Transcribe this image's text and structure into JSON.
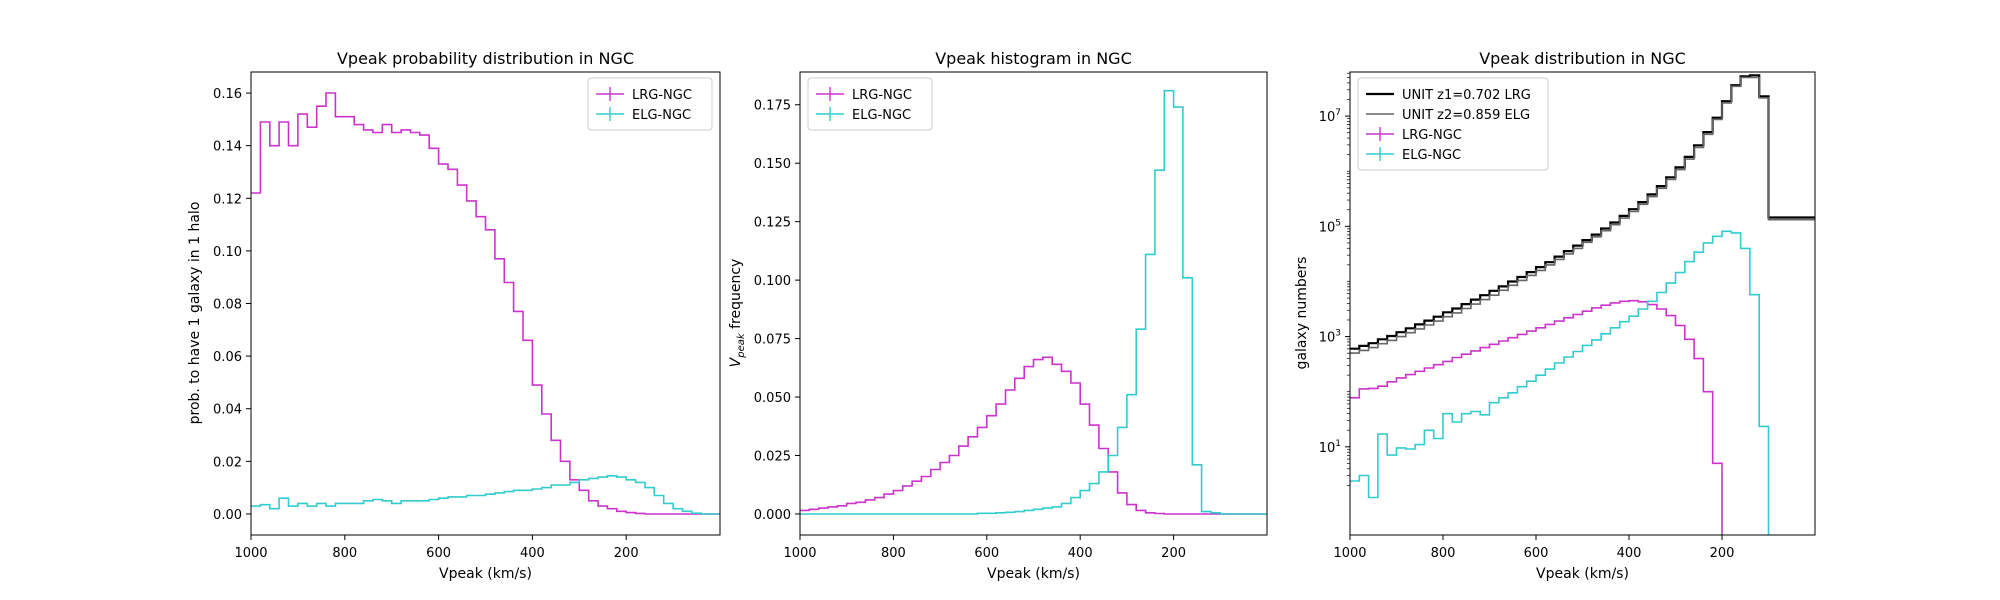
{
  "figure": {
    "background": "#ffffff",
    "colors": {
      "lrg": "#cc33cc",
      "elg": "#33cccc",
      "unit1": "#000000",
      "unit2": "#666666"
    }
  },
  "chart_data": [
    {
      "type": "line",
      "title": "Vpeak probability distribution in NGC",
      "xlabel": "Vpeak (km/s)",
      "ylabel": "prob. to have 1 galaxy in 1 halo",
      "xlim": [
        1000,
        0
      ],
      "ylim": [
        -0.008,
        0.168
      ],
      "yscale": "linear",
      "xticks": [
        1000,
        800,
        600,
        400,
        200
      ],
      "yticks": [
        "0.00",
        "0.02",
        "0.04",
        "0.06",
        "0.08",
        "0.10",
        "0.12",
        "0.14",
        "0.16"
      ],
      "legend_position": "top-right",
      "legend": [
        "LRG-NGC",
        "ELG-NGC"
      ],
      "grid": false,
      "bin_edges_start": 1000,
      "bin_width": 20,
      "series": [
        {
          "name": "LRG-NGC",
          "color": "#cc33cc",
          "marker": "errorbar",
          "values": [
            0.122,
            0.149,
            0.14,
            0.149,
            0.14,
            0.152,
            0.147,
            0.155,
            0.16,
            0.151,
            0.151,
            0.148,
            0.146,
            0.145,
            0.148,
            0.145,
            0.146,
            0.145,
            0.144,
            0.139,
            0.133,
            0.131,
            0.125,
            0.119,
            0.113,
            0.108,
            0.097,
            0.088,
            0.077,
            0.066,
            0.049,
            0.038,
            0.028,
            0.02,
            0.013,
            0.009,
            0.005,
            0.003,
            0.002,
            0.001,
            0.0005,
            0.0002,
            0,
            0,
            0,
            0,
            0,
            0,
            0,
            0
          ]
        },
        {
          "name": "ELG-NGC",
          "color": "#33cccc",
          "marker": "errorbar",
          "values": [
            0.003,
            0.0035,
            0.002,
            0.006,
            0.003,
            0.004,
            0.003,
            0.004,
            0.003,
            0.004,
            0.004,
            0.004,
            0.005,
            0.0055,
            0.005,
            0.004,
            0.005,
            0.005,
            0.005,
            0.0055,
            0.006,
            0.0065,
            0.0065,
            0.007,
            0.007,
            0.0075,
            0.008,
            0.0085,
            0.009,
            0.009,
            0.0095,
            0.01,
            0.011,
            0.011,
            0.012,
            0.013,
            0.0135,
            0.014,
            0.0145,
            0.014,
            0.013,
            0.012,
            0.01,
            0.007,
            0.004,
            0.002,
            0.001,
            0.0003,
            0,
            0
          ]
        }
      ]
    },
    {
      "type": "line",
      "title": "Vpeak histogram in NGC",
      "xlabel": "Vpeak (km/s)",
      "ylabel_base": "V",
      "ylabel_sub": "peak",
      "ylabel_rest": " frequency",
      "xlim": [
        1000,
        0
      ],
      "ylim": [
        -0.009,
        0.189
      ],
      "yscale": "linear",
      "xticks": [
        1000,
        800,
        600,
        400,
        200
      ],
      "yticks": [
        "0.000",
        "0.025",
        "0.050",
        "0.075",
        "0.100",
        "0.125",
        "0.150",
        "0.175"
      ],
      "legend_position": "top-left",
      "legend": [
        "LRG-NGC",
        "ELG-NGC"
      ],
      "grid": false,
      "bin_edges_start": 1000,
      "bin_width": 20,
      "series": [
        {
          "name": "LRG-NGC",
          "color": "#cc33cc",
          "marker": "errorbar",
          "values": [
            0.0015,
            0.002,
            0.0025,
            0.003,
            0.0035,
            0.0045,
            0.005,
            0.006,
            0.007,
            0.0085,
            0.01,
            0.012,
            0.014,
            0.016,
            0.019,
            0.022,
            0.025,
            0.029,
            0.033,
            0.037,
            0.042,
            0.047,
            0.053,
            0.058,
            0.063,
            0.066,
            0.067,
            0.064,
            0.061,
            0.056,
            0.047,
            0.038,
            0.028,
            0.018,
            0.009,
            0.004,
            0.0015,
            0.0005,
            0.0002,
            0,
            0,
            0,
            0,
            0,
            0,
            0,
            0,
            0,
            0,
            0
          ]
        },
        {
          "name": "ELG-NGC",
          "color": "#33cccc",
          "marker": "errorbar",
          "values": [
            0,
            0,
            0,
            0,
            0,
            0,
            0,
            0,
            0,
            0,
            0,
            0,
            0,
            0,
            0,
            0,
            0,
            0,
            0,
            0.0003,
            0.0003,
            0.0005,
            0.0007,
            0.001,
            0.0015,
            0.002,
            0.0025,
            0.003,
            0.0045,
            0.007,
            0.01,
            0.013,
            0.018,
            0.025,
            0.037,
            0.051,
            0.079,
            0.111,
            0.147,
            0.181,
            0.174,
            0.101,
            0.021,
            0.001,
            0.0005,
            0,
            0,
            0,
            0,
            0
          ]
        }
      ]
    },
    {
      "type": "line",
      "title": "Vpeak distribution in NGC",
      "xlabel": "Vpeak (km/s)",
      "ylabel": "galaxy numbers",
      "xlim": [
        1000,
        0
      ],
      "ylog_range": [
        -0.6,
        7.8
      ],
      "yscale": "log",
      "xticks": [
        1000,
        800,
        600,
        400,
        200
      ],
      "yticks_exp": [
        1,
        3,
        5,
        7
      ],
      "ytick_base": "10",
      "legend_position": "top-left",
      "legend": [
        "UNIT z1=0.702 LRG",
        "UNIT z2=0.859 ELG",
        "LRG-NGC",
        "ELG-NGC"
      ],
      "grid": false,
      "bin_edges_start": 1000,
      "bin_width": 20,
      "series": [
        {
          "name": "UNIT z1=0.702 LRG",
          "color": "#000000",
          "marker": "line",
          "log10_values": [
            2.78,
            2.83,
            2.88,
            2.95,
            3.01,
            3.08,
            3.15,
            3.22,
            3.29,
            3.36,
            3.44,
            3.51,
            3.59,
            3.67,
            3.75,
            3.83,
            3.91,
            4.0,
            4.08,
            4.17,
            4.26,
            4.35,
            4.45,
            4.55,
            4.65,
            4.75,
            4.85,
            4.96,
            5.07,
            5.19,
            5.31,
            5.44,
            5.58,
            5.73,
            5.89,
            6.07,
            6.26,
            6.47,
            6.71,
            6.97,
            7.27,
            7.56,
            7.72,
            7.74,
            7.36,
            5.16,
            5.16,
            5.16,
            5.16,
            5.16
          ]
        },
        {
          "name": "UNIT z2=0.859 ELG",
          "color": "#666666",
          "marker": "line",
          "log10_values": [
            2.7,
            2.75,
            2.8,
            2.87,
            2.93,
            3.0,
            3.07,
            3.14,
            3.21,
            3.28,
            3.36,
            3.43,
            3.51,
            3.59,
            3.67,
            3.75,
            3.84,
            3.93,
            4.02,
            4.11,
            4.2,
            4.3,
            4.4,
            4.5,
            4.6,
            4.71,
            4.81,
            4.92,
            5.03,
            5.15,
            5.27,
            5.4,
            5.54,
            5.69,
            5.85,
            6.03,
            6.22,
            6.43,
            6.67,
            6.94,
            7.24,
            7.54,
            7.7,
            7.7,
            7.33,
            5.12,
            5.12,
            5.12,
            5.12,
            5.12
          ]
        },
        {
          "name": "LRG-NGC",
          "color": "#cc33cc",
          "marker": "errorbar",
          "log10_values": [
            1.89,
            2.05,
            2.06,
            2.1,
            2.18,
            2.25,
            2.31,
            2.37,
            2.43,
            2.49,
            2.55,
            2.62,
            2.68,
            2.74,
            2.8,
            2.86,
            2.92,
            2.98,
            3.04,
            3.1,
            3.16,
            3.22,
            3.28,
            3.34,
            3.4,
            3.46,
            3.52,
            3.57,
            3.61,
            3.64,
            3.65,
            3.63,
            3.58,
            3.5,
            3.38,
            3.2,
            2.95,
            2.6,
            2.0,
            0.7,
            -1.0,
            -1.0,
            -1.0,
            -1.0,
            -1.0,
            -1.0,
            -1.0,
            -1.0,
            -1.0,
            -1.0
          ]
        },
        {
          "name": "ELG-NGC",
          "color": "#33cccc",
          "marker": "errorbar",
          "log10_values": [
            0.38,
            0.48,
            0.08,
            1.23,
            0.85,
            0.98,
            0.96,
            1.04,
            1.3,
            1.15,
            1.6,
            1.45,
            1.6,
            1.64,
            1.58,
            1.8,
            1.89,
            1.98,
            2.09,
            2.19,
            2.3,
            2.41,
            2.52,
            2.63,
            2.73,
            2.84,
            2.94,
            3.05,
            3.16,
            3.27,
            3.37,
            3.5,
            3.64,
            3.8,
            3.97,
            4.16,
            4.36,
            4.53,
            4.7,
            4.82,
            4.91,
            4.88,
            4.6,
            3.76,
            1.37,
            -1.0,
            -1.0,
            -1.0,
            -1.0,
            -1.0
          ]
        }
      ]
    }
  ]
}
